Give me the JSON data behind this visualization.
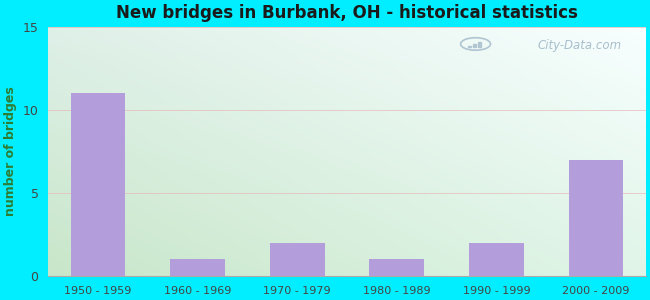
{
  "title": "New bridges in Burbank, OH - historical statistics",
  "categories": [
    "1950 - 1959",
    "1960 - 1969",
    "1970 - 1979",
    "1980 - 1989",
    "1990 - 1999",
    "2000 - 2009"
  ],
  "values": [
    11,
    1,
    2,
    1,
    2,
    7
  ],
  "bar_color": "#b39ddb",
  "ylabel": "number of bridges",
  "ylim": [
    0,
    15
  ],
  "yticks": [
    0,
    5,
    10,
    15
  ],
  "background_outer": "#00eeff",
  "gradient_top_left": "#dff0e8",
  "gradient_top_right": "#f0f8ff",
  "gradient_bottom_left": "#c8e6c9",
  "gradient_bottom_right": "#e8f4fd",
  "grid_color": "#e8b8b8",
  "title_color": "#1a1a1a",
  "ylabel_color": "#2e7d32",
  "tick_label_color": "#444444",
  "watermark_text": "City-Data.com",
  "watermark_color": "#a0b8c8"
}
